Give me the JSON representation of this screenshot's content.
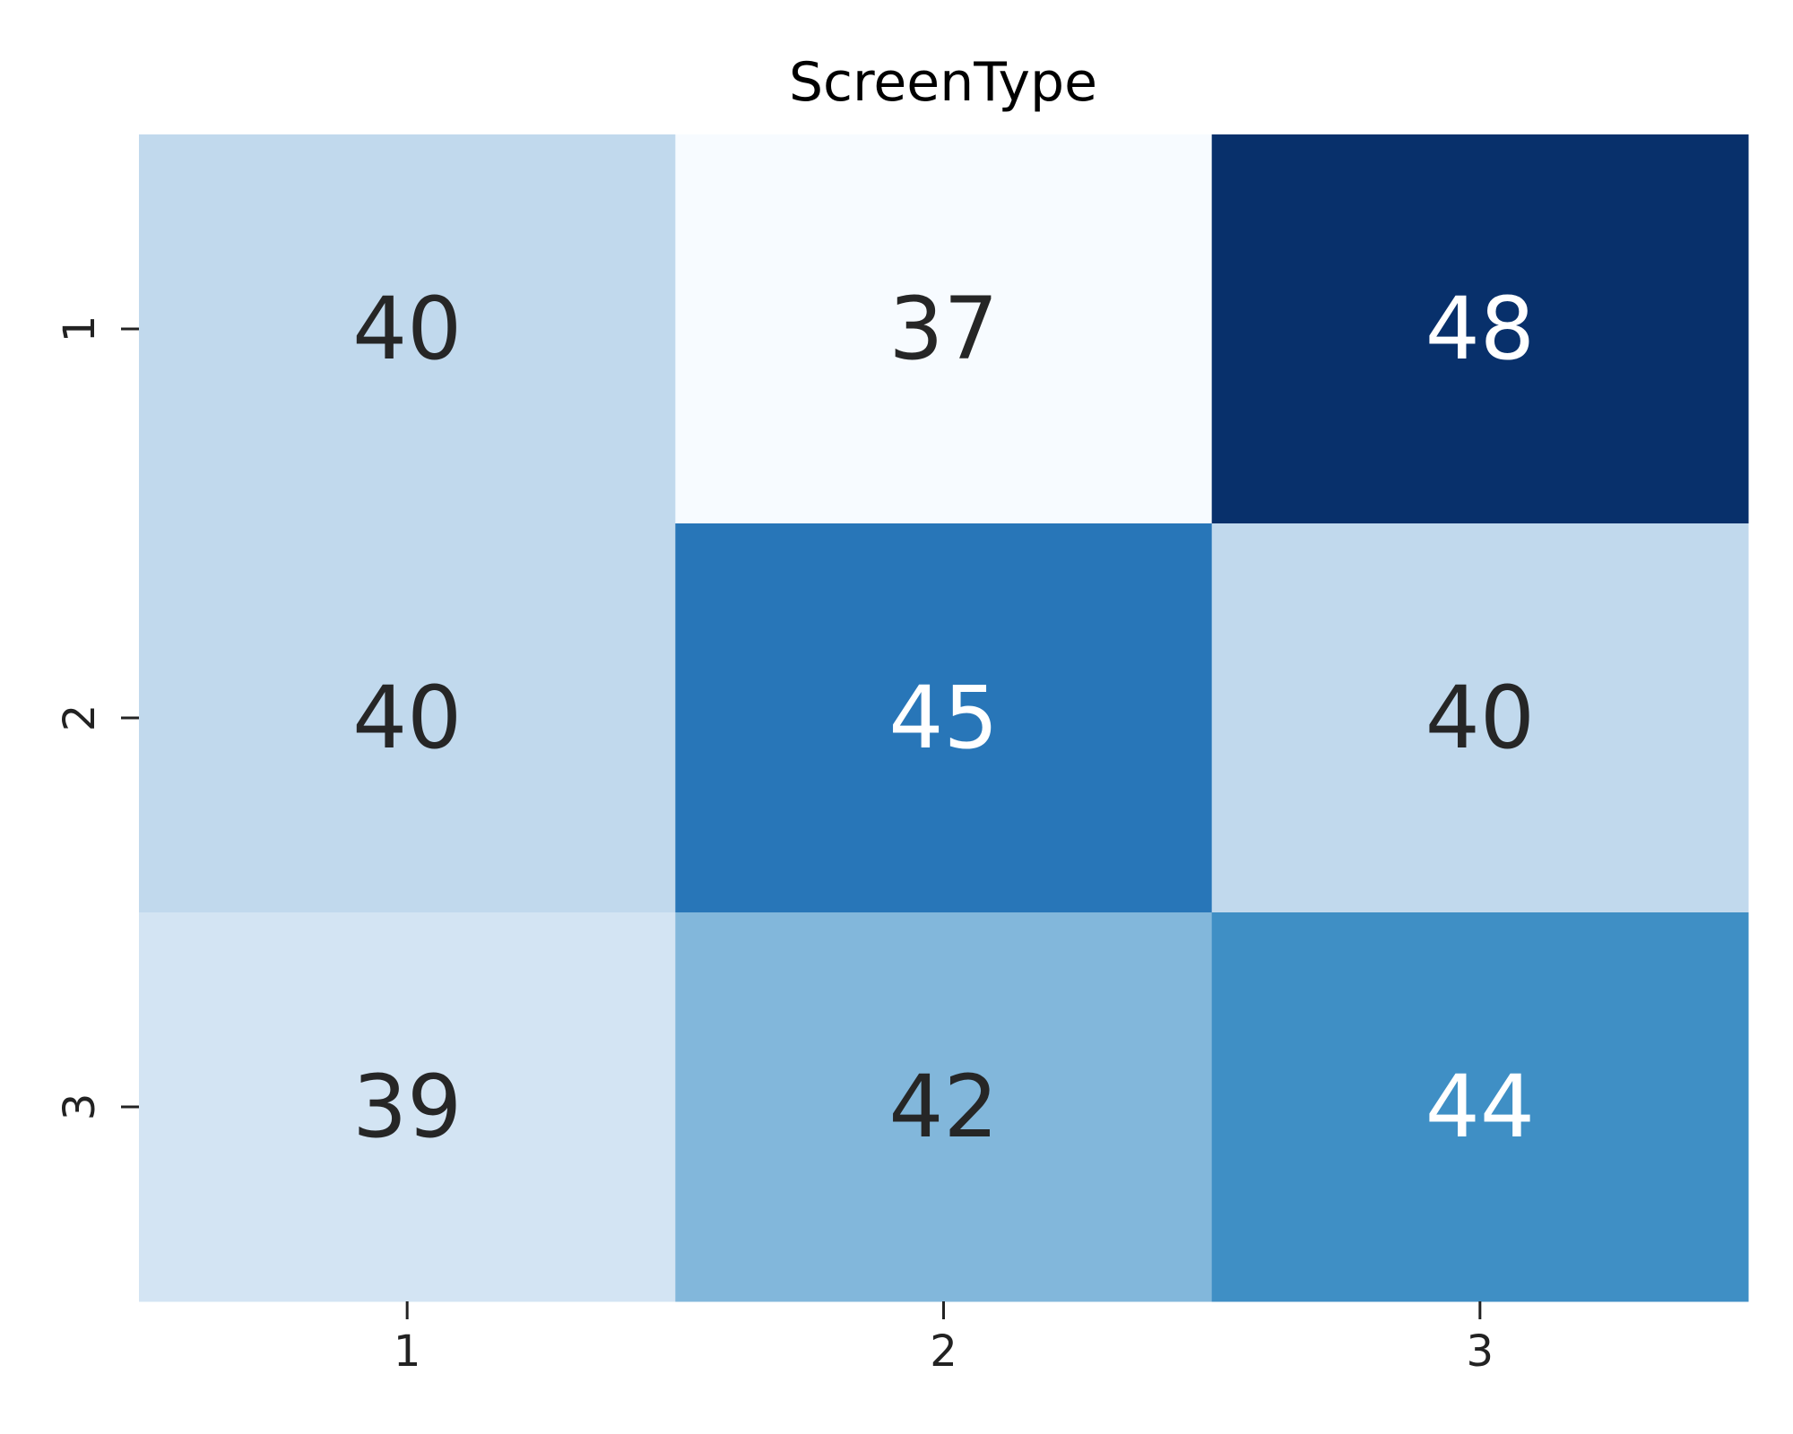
{
  "chart_data": {
    "type": "heatmap",
    "title": "ScreenType",
    "xlabel": "",
    "ylabel": "",
    "x_categories": [
      "1",
      "2",
      "3"
    ],
    "y_categories": [
      "1",
      "2",
      "3"
    ],
    "values": [
      [
        40,
        37,
        48
      ],
      [
        40,
        45,
        40
      ],
      [
        39,
        42,
        44
      ]
    ],
    "colorbar": false,
    "colormap": "Blues",
    "value_range": [
      37,
      48
    ],
    "colors": {
      "cells": [
        [
          "#c1d9ed",
          "#f7fbff",
          "#08306b"
        ],
        [
          "#c1d9ed",
          "#2876b8",
          "#c1d9ed"
        ],
        [
          "#d3e4f3",
          "#82b7db",
          "#3f8fc5"
        ]
      ],
      "dark_text": "#262626",
      "light_text": "#ffffff"
    }
  }
}
